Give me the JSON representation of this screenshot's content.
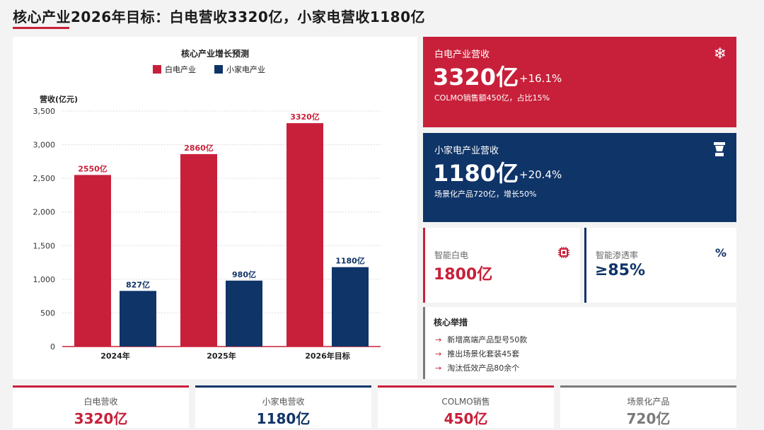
{
  "page": {
    "title": "核心产业2026年目标：白电营收3320亿，小家电营收1180亿"
  },
  "chart_data": {
    "type": "bar",
    "title": "核心产业增长预测",
    "ylabel": "营收(亿元)",
    "categories": [
      "2024年",
      "2025年",
      "2026年目标"
    ],
    "series": [
      {
        "name": "白电产业",
        "color": "#c8203a",
        "values": [
          2550,
          2860,
          3320
        ],
        "labels": [
          "2550亿",
          "2860亿",
          "3320亿"
        ]
      },
      {
        "name": "小家电产业",
        "color": "#0f3468",
        "values": [
          827,
          980,
          1180
        ],
        "labels": [
          "827亿",
          "980亿",
          "1180亿"
        ]
      }
    ],
    "ylim": [
      0,
      3500
    ],
    "yticks": [
      0,
      500,
      1000,
      1500,
      2000,
      2500,
      3000,
      3500
    ],
    "ytick_labels": [
      "0",
      "500",
      "1,000",
      "1,500",
      "2,000",
      "2,500",
      "3,000",
      "3,500"
    ],
    "grid": true,
    "legend_position": "top-center"
  },
  "cards": {
    "white_goods": {
      "label": "白电产业营收",
      "value": "3320亿",
      "growth": "+16.1%",
      "sub": "COLMO销售额450亿，占比15%",
      "icon": "snowflake-icon",
      "color": "#c8203a"
    },
    "small_appliance": {
      "label": "小家电产业营收",
      "value": "1180亿",
      "growth": "+20.4%",
      "sub": "场景化产品720亿，增长50%",
      "icon": "blender-icon",
      "color": "#0f3468"
    }
  },
  "mini_cards": {
    "smart": {
      "label": "智能白电",
      "value": "1800亿",
      "icon": "chip-icon"
    },
    "penetration": {
      "label": "智能渗透率",
      "value": "≥85%",
      "icon": "percent-icon"
    }
  },
  "measures": {
    "title": "核心举措",
    "items": [
      "新增高端产品型号50款",
      "推出场景化套装45套",
      "淘汰低效产品80余个"
    ]
  },
  "stats": [
    {
      "label": "白电营收",
      "value": "3320亿",
      "color": "#c8203a"
    },
    {
      "label": "小家电营收",
      "value": "1180亿",
      "color": "#0f3468"
    },
    {
      "label": "COLMO销售",
      "value": "450亿",
      "color": "#c8203a"
    },
    {
      "label": "场景化产品",
      "value": "720亿",
      "color": "#7a7a7a"
    }
  ]
}
